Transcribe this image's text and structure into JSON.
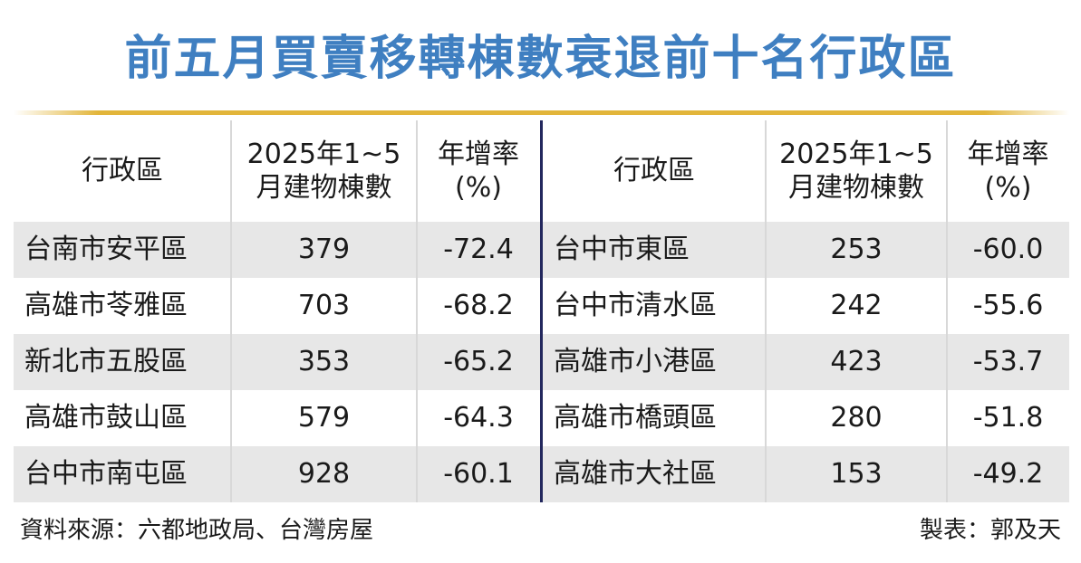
{
  "title": "前五月買賣移轉棟數衰退前十名行政區",
  "tables": [
    {
      "headers": [
        "行政區",
        "2025年1~5\n月建物棟數",
        "年增率\n(%)"
      ],
      "rows": [
        [
          "台南市安平區",
          "379",
          "-72.4"
        ],
        [
          "高雄市苓雅區",
          "703",
          "-68.2"
        ],
        [
          "新北市五股區",
          "353",
          "-65.2"
        ],
        [
          "高雄市鼓山區",
          "579",
          "-64.3"
        ],
        [
          "台中市南屯區",
          "928",
          "-60.1"
        ]
      ]
    },
    {
      "headers": [
        "行政區",
        "2025年1~5\n月建物棟數",
        "年增率\n(%)"
      ],
      "rows": [
        [
          "台中市東區",
          "253",
          "-60.0"
        ],
        [
          "台中市清水區",
          "242",
          "-55.6"
        ],
        [
          "高雄市小港區",
          "423",
          "-53.7"
        ],
        [
          "高雄市橋頭區",
          "280",
          "-51.8"
        ],
        [
          "高雄市大社區",
          "153",
          "-49.2"
        ]
      ]
    }
  ],
  "source": "資料來源：六都地政局、台灣房屋",
  "credit": "製表：郭及天"
}
